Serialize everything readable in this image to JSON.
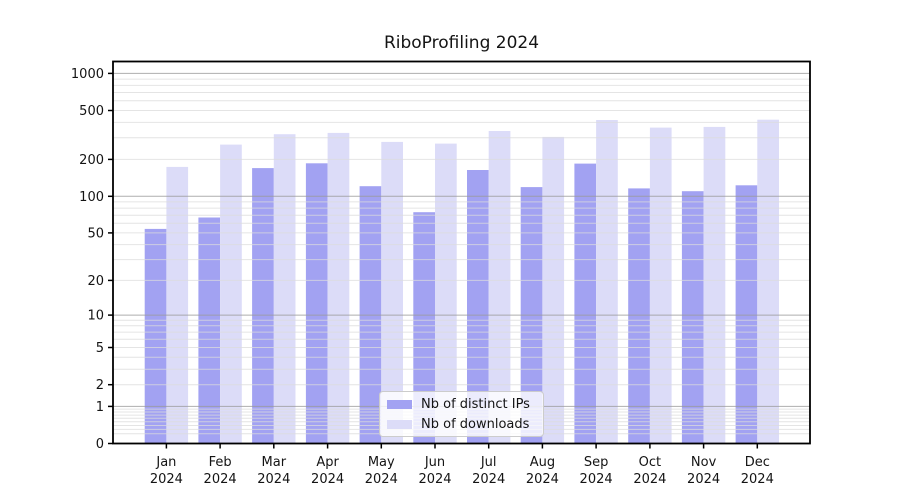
{
  "title": "RiboProfiling 2024",
  "chart_data": {
    "type": "bar",
    "title": "RiboProfiling 2024",
    "categories": [
      "Jan 2024",
      "Feb 2024",
      "Mar 2024",
      "Apr 2024",
      "May 2024",
      "Jun 2024",
      "Jul 2024",
      "Aug 2024",
      "Sep 2024",
      "Oct 2024",
      "Nov 2024",
      "Dec 2024"
    ],
    "category_line1": [
      "Jan",
      "Feb",
      "Mar",
      "Apr",
      "May",
      "Jun",
      "Jul",
      "Aug",
      "Sep",
      "Oct",
      "Nov",
      "Dec"
    ],
    "category_line2": "2024",
    "series": [
      {
        "name": "Nb of distinct IPs",
        "color": "#a2a2f2",
        "values": [
          54,
          67,
          170,
          186,
          121,
          74,
          164,
          119,
          185,
          116,
          110,
          123
        ]
      },
      {
        "name": "Nb of downloads",
        "color": "#dcdcf8",
        "values": [
          174,
          264,
          321,
          329,
          278,
          269,
          341,
          305,
          419,
          363,
          368,
          421
        ]
      }
    ],
    "yscale": "log1p",
    "yticks": [
      0,
      1,
      2,
      5,
      10,
      20,
      50,
      100,
      200,
      500,
      1000
    ],
    "ylim": [
      0,
      1250
    ],
    "xlabel": "",
    "ylabel": "",
    "grid": "major+minor",
    "legend_position": "lower center"
  },
  "colors": {
    "bar_distinct_ips": "#a2a2f2",
    "bar_downloads": "#dcdcf8",
    "axis": "#000000",
    "grid_minor": "#dcdcdc",
    "grid_major": "#9a9a9a",
    "text": "#141414",
    "legend_border": "#cccccc"
  }
}
